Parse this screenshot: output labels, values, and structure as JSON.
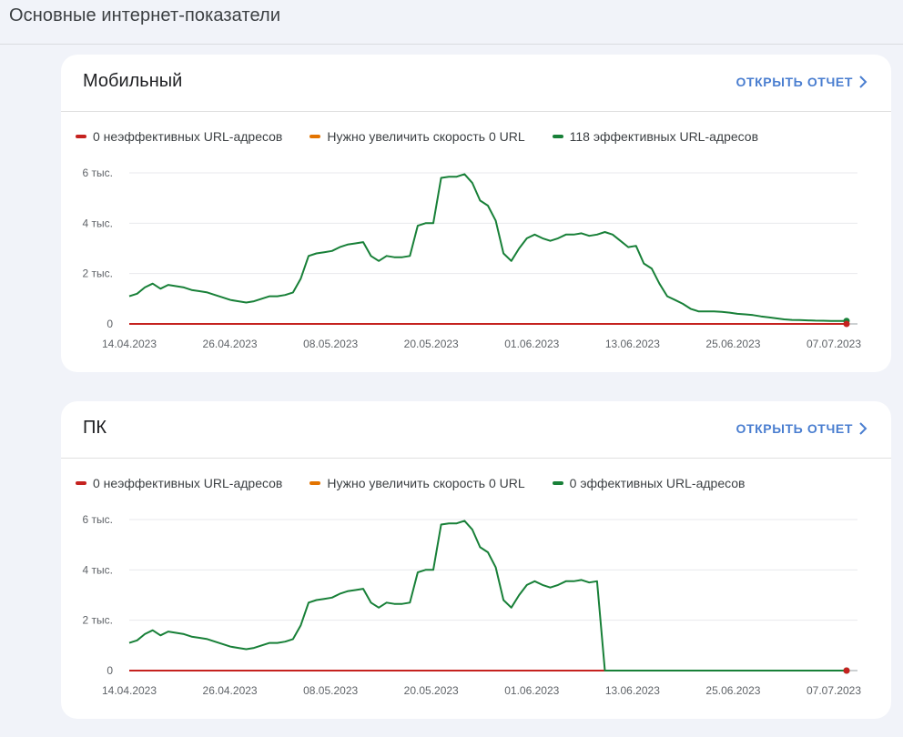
{
  "page": {
    "title": "Основные интернет-показатели"
  },
  "colors": {
    "poor": "#c5221f",
    "needs": "#e37400",
    "good": "#188038",
    "link": "#4a7ed0"
  },
  "cards": [
    {
      "id": "mobile",
      "title": "Мобильный",
      "open_report": "ОТКРЫТЬ ОТЧЕТ",
      "legend": [
        {
          "label": "0 неэффективных URL-адресов",
          "color": "#c5221f"
        },
        {
          "label": "Нужно увеличить скорость 0 URL",
          "color": "#e37400"
        },
        {
          "label": "118 эффективных URL-адресов",
          "color": "#188038"
        }
      ],
      "chart_data": {
        "type": "line",
        "x_start": "14.04.2023",
        "x_tick_labels": [
          "14.04.2023",
          "26.04.2023",
          "08.05.2023",
          "20.05.2023",
          "01.06.2023",
          "13.06.2023",
          "25.06.2023",
          "07.07.2023"
        ],
        "y_tick_labels": [
          "0",
          "2 тыс.",
          "4 тыс.",
          "6 тыс."
        ],
        "ylim": [
          0,
          6000
        ],
        "series": [
          {
            "name": "0 неэффективных URL-адресов",
            "color": "#c5221f",
            "values": [
              0,
              0,
              0,
              0,
              0,
              0,
              0,
              0,
              0,
              0,
              0,
              0,
              0,
              0,
              0,
              0,
              0,
              0,
              0,
              0,
              0,
              0,
              0,
              0,
              0,
              0,
              0,
              0,
              0,
              0,
              0,
              0,
              0,
              0,
              0,
              0,
              0,
              0,
              0,
              0,
              0,
              0,
              0,
              0,
              0,
              0,
              0,
              0,
              0,
              0,
              0,
              0,
              0,
              0,
              0,
              0,
              0,
              0,
              0,
              0,
              0,
              0,
              0,
              0,
              0,
              0,
              0,
              0,
              0,
              0,
              0,
              0,
              0,
              0,
              0,
              0,
              0,
              0,
              0,
              0,
              0,
              0,
              0,
              0,
              0,
              0,
              0,
              0,
              0,
              0,
              0,
              0,
              0
            ]
          },
          {
            "name": "118 эффективных URL-адресов",
            "color": "#188038",
            "values": [
              1100,
              1200,
              1450,
              1600,
              1400,
              1550,
              1500,
              1450,
              1350,
              1300,
              1250,
              1150,
              1050,
              950,
              900,
              850,
              900,
              1000,
              1100,
              1100,
              1150,
              1250,
              1800,
              2700,
              2800,
              2850,
              2900,
              3050,
              3150,
              3200,
              3250,
              2700,
              2500,
              2700,
              2650,
              2650,
              2700,
              3900,
              4000,
              4000,
              5800,
              5850,
              5850,
              5950,
              5600,
              4900,
              4700,
              4100,
              2800,
              2500,
              3000,
              3400,
              3550,
              3400,
              3300,
              3400,
              3550,
              3550,
              3600,
              3500,
              3550,
              3650,
              3550,
              3300,
              3050,
              3100,
              2400,
              2200,
              1600,
              1100,
              950,
              800,
              600,
              500,
              500,
              500,
              480,
              450,
              400,
              380,
              350,
              300,
              260,
              220,
              180,
              160,
              150,
              140,
              130,
              125,
              120,
              118,
              118
            ]
          }
        ]
      }
    },
    {
      "id": "pc",
      "title": "ПК",
      "open_report": "ОТКРЫТЬ ОТЧЕТ",
      "legend": [
        {
          "label": "0 неэффективных URL-адресов",
          "color": "#c5221f"
        },
        {
          "label": "Нужно увеличить скорость 0 URL",
          "color": "#e37400"
        },
        {
          "label": "0 эффективных URL-адресов",
          "color": "#188038"
        }
      ],
      "chart_data": {
        "type": "line",
        "x_start": "14.04.2023",
        "x_tick_labels": [
          "14.04.2023",
          "26.04.2023",
          "08.05.2023",
          "20.05.2023",
          "01.06.2023",
          "13.06.2023",
          "25.06.2023",
          "07.07.2023"
        ],
        "y_tick_labels": [
          "0",
          "2 тыс.",
          "4 тыс.",
          "6 тыс."
        ],
        "ylim": [
          0,
          6000
        ],
        "series": [
          {
            "name": "0 неэффективных URL-адресов",
            "color": "#c5221f",
            "values": [
              0,
              0,
              0,
              0,
              0,
              0,
              0,
              0,
              0,
              0,
              0,
              0,
              0,
              0,
              0,
              0,
              0,
              0,
              0,
              0,
              0,
              0,
              0,
              0,
              0,
              0,
              0,
              0,
              0,
              0,
              0,
              0,
              0,
              0,
              0,
              0,
              0,
              0,
              0,
              0,
              0,
              0,
              0,
              0,
              0,
              0,
              0,
              0,
              0,
              0,
              0,
              0,
              0,
              0,
              0,
              0,
              0,
              0,
              0,
              0,
              0,
              0,
              0,
              0,
              0,
              0,
              0,
              0,
              0,
              0,
              0,
              0,
              0,
              0,
              0,
              0,
              0,
              0,
              0,
              0,
              0,
              0,
              0,
              0,
              0,
              0,
              0,
              0,
              0,
              0,
              0,
              0,
              0
            ]
          },
          {
            "name": "0 эффективных URL-адресов",
            "color": "#188038",
            "values": [
              1100,
              1200,
              1450,
              1600,
              1400,
              1550,
              1500,
              1450,
              1350,
              1300,
              1250,
              1150,
              1050,
              950,
              900,
              850,
              900,
              1000,
              1100,
              1100,
              1150,
              1250,
              1800,
              2700,
              2800,
              2850,
              2900,
              3050,
              3150,
              3200,
              3250,
              2700,
              2500,
              2700,
              2650,
              2650,
              2700,
              3900,
              4000,
              4000,
              5800,
              5850,
              5850,
              5950,
              5600,
              4900,
              4700,
              4100,
              2800,
              2500,
              3000,
              3400,
              3550,
              3400,
              3300,
              3400,
              3550,
              3550,
              3600,
              3500,
              3550,
              0,
              0,
              0,
              0,
              0,
              0,
              0,
              0,
              0,
              0,
              0,
              0,
              0,
              0,
              0,
              0,
              0,
              0,
              0,
              0,
              0,
              0,
              0,
              0,
              0,
              0,
              0,
              0,
              0,
              0,
              0,
              0
            ]
          }
        ]
      }
    }
  ]
}
